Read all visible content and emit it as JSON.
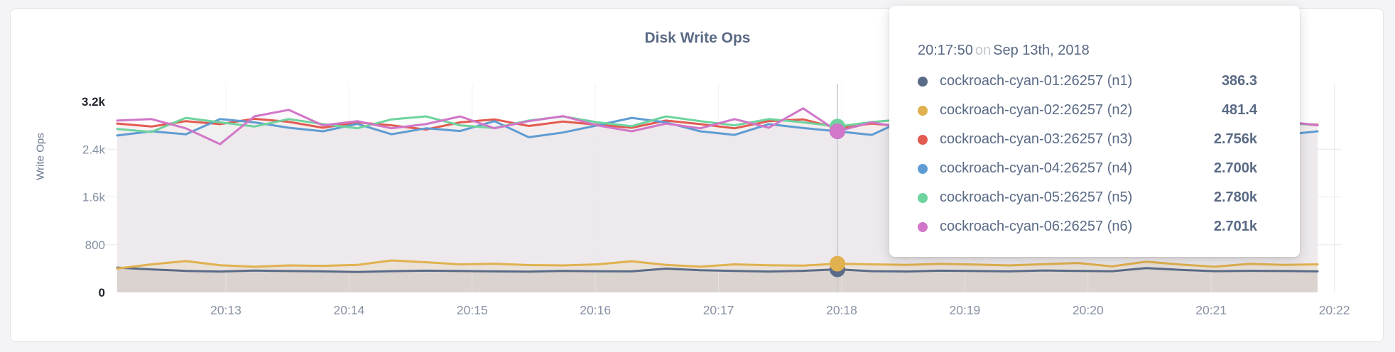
{
  "chart": {
    "title": "Disk Write Ops",
    "y_axis_label": "Write Ops"
  },
  "chart_data": {
    "type": "line",
    "title": "Disk Write Ops",
    "ylabel": "Write Ops",
    "xlabel": "",
    "ylim": [
      0,
      3200
    ],
    "grid": true,
    "legend_position": "tooltip-only",
    "x_ticks": [
      "20:13",
      "20:14",
      "20:15",
      "20:16",
      "20:17",
      "20:18",
      "20:19",
      "20:20",
      "20:21",
      "20:22"
    ],
    "y_ticks": [
      {
        "label": "3.2k",
        "value": 3200,
        "emphasis": true,
        "grid": false
      },
      {
        "label": "2.4k",
        "value": 2400,
        "emphasis": false,
        "grid": true
      },
      {
        "label": "1.6k",
        "value": 1600,
        "emphasis": false,
        "grid": true
      },
      {
        "label": "800",
        "value": 800,
        "emphasis": false,
        "grid": true
      },
      {
        "label": "0",
        "value": 0,
        "emphasis": true,
        "grid": false
      }
    ],
    "hover_index": 21,
    "hover_time": "20:17:50",
    "series": [
      {
        "name": "cockroach-cyan-01:26257 (n1)",
        "short": "n1",
        "color": "#5a6b87",
        "area_alpha": 0.12,
        "values": [
          415,
          385,
          360,
          350,
          365,
          358,
          352,
          342,
          356,
          364,
          358,
          352,
          348,
          360,
          354,
          352,
          398,
          372,
          360,
          350,
          362,
          386.3,
          356,
          350,
          364,
          358,
          352,
          368,
          360,
          354,
          408,
          378,
          356,
          362,
          358,
          352
        ]
      },
      {
        "name": "cockroach-cyan-02:26257 (n2)",
        "short": "n2",
        "color": "#e0b14e",
        "area_alpha": 0.13,
        "values": [
          400,
          470,
          525,
          455,
          430,
          452,
          445,
          460,
          535,
          505,
          470,
          480,
          458,
          452,
          470,
          522,
          462,
          432,
          470,
          455,
          448,
          481.4,
          470,
          462,
          478,
          468,
          452,
          472,
          492,
          435,
          515,
          468,
          430,
          478,
          462,
          470
        ]
      },
      {
        "name": "cockroach-cyan-03:26257 (n3)",
        "short": "n3",
        "color": "#e25a50",
        "area_alpha": 0.05,
        "values": [
          2830,
          2780,
          2870,
          2820,
          2910,
          2860,
          2760,
          2850,
          2800,
          2730,
          2850,
          2900,
          2790,
          2865,
          2810,
          2760,
          2880,
          2820,
          2750,
          2870,
          2900,
          2756,
          2830,
          2780,
          2905,
          2850,
          2780,
          2865,
          2800,
          2755,
          2930,
          2820,
          2865,
          2800,
          2840,
          2810
        ]
      },
      {
        "name": "cockroach-cyan-04:26257 (n4)",
        "short": "n4",
        "color": "#5e9cd3",
        "area_alpha": 0.05,
        "values": [
          2630,
          2700,
          2650,
          2905,
          2850,
          2760,
          2700,
          2825,
          2650,
          2750,
          2705,
          2870,
          2600,
          2680,
          2800,
          2925,
          2850,
          2700,
          2640,
          2820,
          2755,
          2700,
          2640,
          2905,
          2820,
          2700,
          2885,
          2750,
          2585,
          2905,
          2850,
          2700,
          2760,
          2700,
          2640,
          2700
        ]
      },
      {
        "name": "cockroach-cyan-05:26257 (n5)",
        "short": "n5",
        "color": "#6ed39e",
        "area_alpha": 0.05,
        "values": [
          2740,
          2690,
          2925,
          2850,
          2780,
          2905,
          2820,
          2750,
          2900,
          2950,
          2800,
          2755,
          2880,
          2950,
          2850,
          2785,
          2950,
          2870,
          2800,
          2905,
          2850,
          2780,
          2855,
          2905,
          2780,
          2850,
          2925,
          2755,
          2850,
          2905,
          2800,
          2925,
          2850,
          2780,
          2850,
          2800
        ]
      },
      {
        "name": "cockroach-cyan-06:26257 (n6)",
        "short": "n6",
        "color": "#d176c8",
        "area_alpha": 0.05,
        "values": [
          2880,
          2905,
          2750,
          2485,
          2950,
          3060,
          2800,
          2870,
          2750,
          2820,
          2950,
          2750,
          2870,
          2955,
          2800,
          2700,
          2830,
          2750,
          2905,
          2760,
          3085,
          2701,
          2850,
          2750,
          2925,
          2800,
          2730,
          2905,
          2750,
          3060,
          2780,
          2905,
          2820,
          2750,
          2870,
          2800
        ]
      }
    ]
  },
  "tooltip": {
    "time": "20:17:50",
    "preposition": "on",
    "date": "Sep 13th, 2018",
    "rows": [
      {
        "name": "cockroach-cyan-01:26257 (n1)",
        "value": "386.3",
        "color": "#5a6b87"
      },
      {
        "name": "cockroach-cyan-02:26257 (n2)",
        "value": "481.4",
        "color": "#e0b14e"
      },
      {
        "name": "cockroach-cyan-03:26257 (n3)",
        "value": "2.756k",
        "color": "#e25a50"
      },
      {
        "name": "cockroach-cyan-04:26257 (n4)",
        "value": "2.700k",
        "color": "#5e9cd3"
      },
      {
        "name": "cockroach-cyan-05:26257 (n5)",
        "value": "2.780k",
        "color": "#6ed39e"
      },
      {
        "name": "cockroach-cyan-06:26257 (n6)",
        "value": "2.701k",
        "color": "#d176c8"
      }
    ]
  }
}
